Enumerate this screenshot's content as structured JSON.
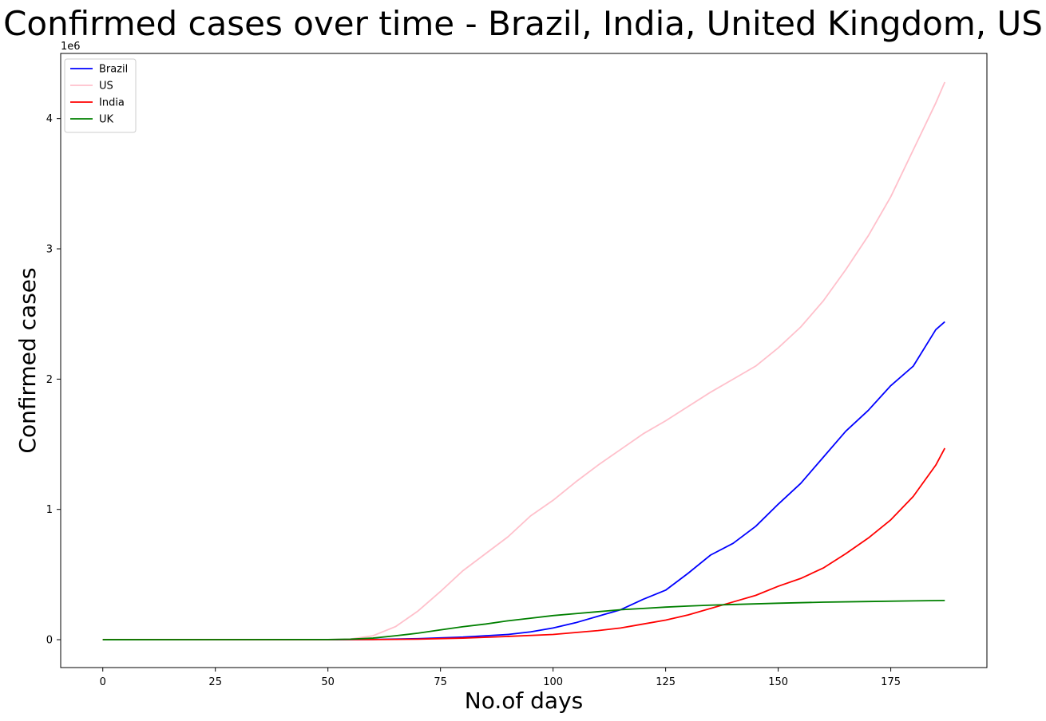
{
  "chart_data": {
    "type": "line",
    "title": "Confirmed cases over time - Brazil, India, United Kingdom, US",
    "xlabel": "No.of days",
    "ylabel": "Confirmed cases",
    "y_scale_label": "1e6",
    "xlim": [
      -9.35,
      196.35
    ],
    "ylim": [
      -0.214,
      4.5
    ],
    "x_ticks": [
      0,
      25,
      50,
      75,
      100,
      125,
      150,
      175
    ],
    "y_ticks": [
      0,
      1,
      2,
      3,
      4
    ],
    "grid": false,
    "legend": "upper-left",
    "series": [
      {
        "name": "Brazil",
        "color": "#0000ff",
        "points": [
          [
            0,
            0
          ],
          [
            50,
            0
          ],
          [
            60,
            0.002
          ],
          [
            70,
            0.008
          ],
          [
            80,
            0.02
          ],
          [
            90,
            0.04
          ],
          [
            95,
            0.06
          ],
          [
            100,
            0.09
          ],
          [
            105,
            0.13
          ],
          [
            110,
            0.18
          ],
          [
            115,
            0.23
          ],
          [
            120,
            0.31
          ],
          [
            125,
            0.38
          ],
          [
            130,
            0.51
          ],
          [
            135,
            0.65
          ],
          [
            140,
            0.74
          ],
          [
            145,
            0.87
          ],
          [
            150,
            1.04
          ],
          [
            155,
            1.2
          ],
          [
            160,
            1.4
          ],
          [
            165,
            1.6
          ],
          [
            170,
            1.76
          ],
          [
            175,
            1.95
          ],
          [
            180,
            2.1
          ],
          [
            185,
            2.38
          ],
          [
            187,
            2.44
          ]
        ]
      },
      {
        "name": "US",
        "color": "#ffc0cb",
        "points": [
          [
            0,
            0
          ],
          [
            50,
            0.001
          ],
          [
            55,
            0.005
          ],
          [
            60,
            0.03
          ],
          [
            65,
            0.1
          ],
          [
            70,
            0.22
          ],
          [
            75,
            0.37
          ],
          [
            80,
            0.53
          ],
          [
            85,
            0.66
          ],
          [
            90,
            0.79
          ],
          [
            95,
            0.95
          ],
          [
            100,
            1.07
          ],
          [
            105,
            1.21
          ],
          [
            110,
            1.34
          ],
          [
            115,
            1.46
          ],
          [
            120,
            1.58
          ],
          [
            125,
            1.68
          ],
          [
            130,
            1.79
          ],
          [
            135,
            1.9
          ],
          [
            140,
            2.0
          ],
          [
            145,
            2.1
          ],
          [
            150,
            2.24
          ],
          [
            155,
            2.4
          ],
          [
            160,
            2.6
          ],
          [
            165,
            2.84
          ],
          [
            170,
            3.1
          ],
          [
            175,
            3.4
          ],
          [
            180,
            3.76
          ],
          [
            185,
            4.12
          ],
          [
            187,
            4.28
          ]
        ]
      },
      {
        "name": "India",
        "color": "#ff0000",
        "points": [
          [
            0,
            0
          ],
          [
            60,
            0.001
          ],
          [
            70,
            0.004
          ],
          [
            80,
            0.012
          ],
          [
            90,
            0.025
          ],
          [
            100,
            0.04
          ],
          [
            110,
            0.07
          ],
          [
            115,
            0.09
          ],
          [
            120,
            0.12
          ],
          [
            125,
            0.15
          ],
          [
            130,
            0.19
          ],
          [
            135,
            0.24
          ],
          [
            140,
            0.29
          ],
          [
            145,
            0.34
          ],
          [
            150,
            0.41
          ],
          [
            155,
            0.47
          ],
          [
            160,
            0.55
          ],
          [
            165,
            0.66
          ],
          [
            170,
            0.78
          ],
          [
            175,
            0.92
          ],
          [
            180,
            1.1
          ],
          [
            185,
            1.34
          ],
          [
            187,
            1.47
          ]
        ]
      },
      {
        "name": "UK",
        "color": "#008000",
        "points": [
          [
            0,
            0
          ],
          [
            50,
            0.001
          ],
          [
            55,
            0.004
          ],
          [
            60,
            0.012
          ],
          [
            65,
            0.03
          ],
          [
            70,
            0.05
          ],
          [
            75,
            0.075
          ],
          [
            80,
            0.1
          ],
          [
            85,
            0.12
          ],
          [
            90,
            0.145
          ],
          [
            95,
            0.165
          ],
          [
            100,
            0.185
          ],
          [
            105,
            0.2
          ],
          [
            110,
            0.215
          ],
          [
            115,
            0.23
          ],
          [
            120,
            0.24
          ],
          [
            125,
            0.25
          ],
          [
            130,
            0.258
          ],
          [
            135,
            0.265
          ],
          [
            140,
            0.27
          ],
          [
            150,
            0.28
          ],
          [
            160,
            0.288
          ],
          [
            170,
            0.293
          ],
          [
            180,
            0.298
          ],
          [
            187,
            0.301
          ]
        ]
      }
    ]
  }
}
